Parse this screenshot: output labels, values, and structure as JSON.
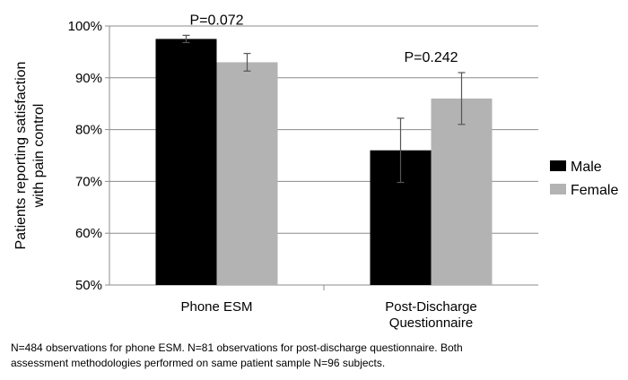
{
  "chart_data": {
    "type": "bar",
    "ylabel_lines": [
      "Patients reporting satisfaction",
      "with pain control"
    ],
    "xlabel": "",
    "ylim": [
      50,
      100
    ],
    "y_ticks": [
      50,
      60,
      70,
      80,
      90,
      100
    ],
    "y_tick_labels": [
      "50%",
      "60%",
      "70%",
      "80%",
      "90%",
      "100%"
    ],
    "grid": true,
    "legend_position": "right",
    "categories": [
      "Phone ESM",
      "Post-Discharge Questionnaire"
    ],
    "category_label_lines": [
      [
        "Phone ESM"
      ],
      [
        "Post-Discharge",
        "Questionnaire"
      ]
    ],
    "series": [
      {
        "name": "Male",
        "color": "#000000",
        "values": [
          97.5,
          76
        ],
        "error": [
          0.7,
          6.2
        ]
      },
      {
        "name": "Female",
        "color": "#b3b3b3",
        "values": [
          93,
          86
        ],
        "error": [
          1.7,
          5
        ]
      }
    ],
    "annotations": [
      {
        "category_index": 0,
        "text": "P=0.072"
      },
      {
        "category_index": 1,
        "text": "P=0.242"
      }
    ]
  },
  "footnote": "N=484 observations for phone ESM.  N=81 observations for post-discharge questionnaire.  Both\nassessment methodologies performed on same patient sample N=96 subjects."
}
